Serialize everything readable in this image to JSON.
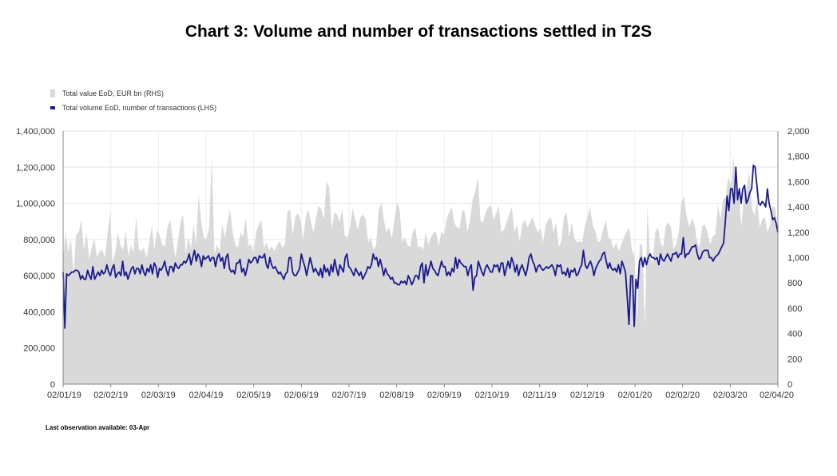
{
  "title": "Chart 3: Volume and number of transactions settled in T2S",
  "note": "Last observation available:  03-Apr",
  "chart_data": {
    "type": "area+line",
    "series": [
      {
        "name": "Total value EoD, EUR bn (RHS)",
        "axis": "right",
        "kind": "area",
        "color": "#d9d9d9",
        "values": [
          1000,
          1200,
          1040,
          1150,
          880,
          1180,
          1200,
          1300,
          1060,
          1200,
          980,
          1080,
          1150,
          1000,
          1050,
          1060,
          1000,
          1180,
          1360,
          960,
          1040,
          1200,
          1100,
          1060,
          1220,
          1010,
          1100,
          1040,
          1320,
          1070,
          1050,
          1080,
          1000,
          1120,
          1250,
          1060,
          1220,
          1180,
          1100,
          1090,
          1240,
          1300,
          1150,
          1000,
          1120,
          1280,
          1340,
          1030,
          1160,
          1070,
          1260,
          1110,
          1500,
          1280,
          1150,
          1150,
          1240,
          1800,
          1030,
          1100,
          1050,
          1260,
          1160,
          1280,
          1380,
          1200,
          1100,
          1080,
          1200,
          1160,
          1320,
          1090,
          1110,
          1040,
          1200,
          1260,
          1300,
          1070,
          1120,
          1060,
          1090,
          1050,
          1100,
          1130,
          1080,
          1100,
          1360,
          1380,
          1180,
          1320,
          1350,
          1300,
          1140,
          1320,
          1380,
          1280,
          1200,
          1320,
          1410,
          1380,
          1300,
          1600,
          1560,
          1220,
          1360,
          1340,
          1280,
          1380,
          1170,
          1160,
          1240,
          1390,
          1300,
          1220,
          1320,
          1340,
          1300,
          1120,
          1160,
          1060,
          1100,
          1380,
          1430,
          1290,
          1200,
          1240,
          1150,
          1300,
          1440,
          1380,
          1120,
          1160,
          1100,
          1080,
          1200,
          1240,
          1080,
          1090,
          1060,
          1200,
          1100,
          1160,
          1200,
          1200,
          1090,
          1210,
          1180,
          1300,
          1360,
          1400,
          1270,
          1240,
          1230,
          1380,
          1360,
          1200,
          1300,
          1460,
          1520,
          1640,
          1290,
          1280,
          1360,
          1400,
          1410,
          1300,
          1350,
          1410,
          1200,
          1220,
          1280,
          1340,
          1400,
          1200,
          1260,
          1130,
          1260,
          1300,
          1240,
          1280,
          1320,
          1250,
          1200,
          1230,
          1120,
          1260,
          1300,
          1320,
          1200,
          1280,
          1080,
          1130,
          1320,
          1360,
          1160,
          1280,
          1150,
          1120,
          1130,
          1120,
          1250,
          1320,
          1400,
          1260,
          1210,
          1120,
          1130,
          1220,
          1300,
          1160,
          1140,
          1070,
          1120,
          1050,
          1100,
          1160,
          1200,
          1240,
          1060,
          1020,
          500,
          1100,
          1100,
          470,
          1400,
          1000,
          960,
          1200,
          1240,
          1120,
          1080,
          1250,
          1280,
          1240,
          1070,
          1100,
          1200,
          1440,
          1480,
          1330,
          1240,
          1310,
          1270,
          1130,
          1080,
          1250,
          1260,
          1200,
          1100,
          1170,
          1180,
          1420,
          1300,
          1460,
          1480,
          1640,
          1560,
          1800,
          1520,
          1520,
          1240,
          1500,
          1540,
          1680,
          1400,
          1330,
          1460,
          1240,
          1300,
          1320,
          1200,
          1260,
          1410,
          1390,
          1200
        ]
      },
      {
        "name": "Total volume EoD, number of transactions (LHS)",
        "axis": "left",
        "kind": "line",
        "color": "#1a1a8c",
        "values": [
          620000,
          310000,
          610000,
          600000,
          610000,
          620000,
          620000,
          630000,
          630000,
          620000,
          580000,
          600000,
          580000,
          580000,
          630000,
          600000,
          580000,
          650000,
          580000,
          600000,
          620000,
          600000,
          630000,
          610000,
          620000,
          660000,
          620000,
          600000,
          640000,
          660000,
          590000,
          610000,
          620000,
          600000,
          680000,
          600000,
          620000,
          580000,
          610000,
          640000,
          650000,
          610000,
          640000,
          640000,
          610000,
          660000,
          620000,
          600000,
          640000,
          620000,
          660000,
          610000,
          670000,
          650000,
          590000,
          640000,
          630000,
          650000,
          680000,
          630000,
          600000,
          650000,
          650000,
          620000,
          670000,
          650000,
          640000,
          660000,
          660000,
          680000,
          670000,
          690000,
          720000,
          660000,
          700000,
          740000,
          680000,
          720000,
          700000,
          650000,
          710000,
          690000,
          700000,
          710000,
          680000,
          700000,
          700000,
          650000,
          700000,
          720000,
          680000,
          700000,
          640000,
          700000,
          720000,
          640000,
          620000,
          630000,
          610000,
          670000,
          670000,
          690000,
          620000,
          640000,
          600000,
          640000,
          690000,
          670000,
          680000,
          700000,
          700000,
          670000,
          710000,
          700000,
          700000,
          720000,
          660000,
          640000,
          700000,
          660000,
          640000,
          650000,
          630000,
          610000,
          620000,
          600000,
          580000,
          610000,
          620000,
          700000,
          700000,
          620000,
          600000,
          600000,
          620000,
          640000,
          720000,
          680000,
          650000,
          600000,
          650000,
          700000,
          660000,
          620000,
          640000,
          620000,
          600000,
          640000,
          590000,
          660000,
          620000,
          640000,
          600000,
          660000,
          620000,
          690000,
          640000,
          600000,
          660000,
          640000,
          620000,
          700000,
          720000,
          650000,
          640000,
          620000,
          600000,
          640000,
          620000,
          600000,
          620000,
          580000,
          600000,
          620000,
          650000,
          640000,
          660000,
          720000,
          690000,
          700000,
          650000,
          690000,
          650000,
          600000,
          640000,
          610000,
          600000,
          580000,
          590000,
          560000,
          560000,
          550000,
          550000,
          570000,
          560000,
          570000,
          550000,
          600000,
          580000,
          550000,
          570000,
          600000,
          600000,
          580000,
          650000,
          670000,
          560000,
          660000,
          600000,
          640000,
          680000,
          640000,
          630000,
          610000,
          600000,
          640000,
          680000,
          650000,
          650000,
          600000,
          620000,
          600000,
          640000,
          620000,
          700000,
          640000,
          690000,
          670000,
          660000,
          650000,
          650000,
          600000,
          640000,
          660000,
          520000,
          590000,
          600000,
          680000,
          650000,
          620000,
          600000,
          640000,
          660000,
          640000,
          620000,
          620000,
          660000,
          650000,
          660000,
          620000,
          670000,
          670000,
          600000,
          640000,
          680000,
          640000,
          700000,
          670000,
          620000,
          660000,
          600000,
          640000,
          660000,
          630000,
          600000,
          640000,
          700000,
          720000,
          680000,
          660000,
          620000,
          650000,
          660000,
          640000,
          630000,
          640000,
          650000,
          640000,
          650000,
          660000,
          640000,
          600000,
          660000,
          650000,
          660000,
          610000,
          620000,
          600000,
          640000,
          590000,
          630000,
          620000,
          640000,
          600000,
          610000,
          640000,
          660000,
          740000,
          660000,
          640000,
          660000,
          680000,
          650000,
          600000,
          640000,
          660000,
          680000,
          690000,
          720000,
          730000,
          680000,
          640000,
          670000,
          640000,
          630000,
          640000,
          620000,
          660000,
          610000,
          680000,
          650000,
          620000,
          480000,
          330000,
          600000,
          600000,
          320000,
          580000,
          530000,
          680000,
          700000,
          650000,
          700000,
          660000,
          700000,
          720000,
          700000,
          700000,
          690000,
          700000,
          660000,
          720000,
          690000,
          680000,
          700000,
          720000,
          700000,
          680000,
          720000,
          720000,
          730000,
          700000,
          720000,
          720000,
          810000,
          700000,
          720000,
          720000,
          740000,
          760000,
          760000,
          770000,
          720000,
          690000,
          700000,
          730000,
          740000,
          740000,
          740000,
          700000,
          700000,
          680000,
          700000,
          710000,
          720000,
          740000,
          760000,
          780000,
          900000,
          1040000,
          960000,
          1080000,
          1080000,
          1000000,
          1200000,
          1020000,
          1080000,
          1000000,
          1080000,
          1100000,
          1000000,
          1020000,
          1060000,
          1080000,
          1210000,
          1200000,
          1100000,
          1000000,
          990000,
          1010000,
          1000000,
          980000,
          1080000,
          1000000,
          960000,
          910000,
          920000,
          890000,
          840000
        ]
      }
    ],
    "x_tick_labels": [
      "02/01/19",
      "02/02/19",
      "02/03/19",
      "02/04/19",
      "02/05/19",
      "02/06/19",
      "02/07/19",
      "02/08/19",
      "02/09/19",
      "02/10/19",
      "02/11/19",
      "02/12/19",
      "02/01/20",
      "02/02/20",
      "02/03/20",
      "02/04/20"
    ],
    "ylim_left": [
      0,
      1400000
    ],
    "ylim_right": [
      0,
      2000
    ],
    "y_tick_labels_left": [
      "0",
      "200,000",
      "400,000",
      "600,000",
      "800,000",
      "1,000,000",
      "1,200,000",
      "1,400,000"
    ],
    "y_tick_labels_right": [
      "0",
      "200",
      "400",
      "600",
      "800",
      "1,000",
      "1,200",
      "1,400",
      "1,600",
      "1,800",
      "2,000"
    ],
    "grid": true,
    "legend": "top-left"
  }
}
